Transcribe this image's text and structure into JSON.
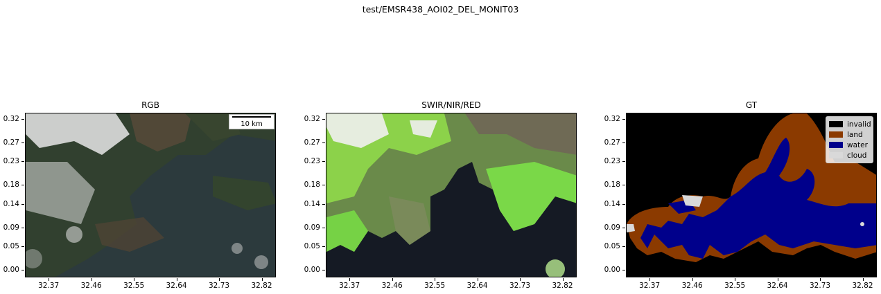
{
  "suptitle": "test/EMSR438_AOI02_DEL_MONIT03",
  "panels": [
    {
      "title": "RGB"
    },
    {
      "title": "SWIR/NIR/RED"
    },
    {
      "title": "GT"
    }
  ],
  "scale_bar": {
    "label": "10 km"
  },
  "legend": [
    {
      "label": "invalid",
      "color": "#000000"
    },
    {
      "label": "land",
      "color": "#8b3a00"
    },
    {
      "label": "water",
      "color": "#00008b"
    },
    {
      "label": "cloud",
      "color": "#d9d9d9"
    }
  ],
  "chart_data": {
    "type": "image",
    "x_ticks": [
      "32.37",
      "32.46",
      "32.55",
      "32.64",
      "32.73",
      "32.82"
    ],
    "y_ticks": [
      "0.32",
      "0.27",
      "0.23",
      "0.18",
      "0.14",
      "0.09",
      "0.05",
      "0.00"
    ],
    "x_range": [
      32.32,
      32.85
    ],
    "y_range": [
      -0.015,
      0.335
    ]
  }
}
